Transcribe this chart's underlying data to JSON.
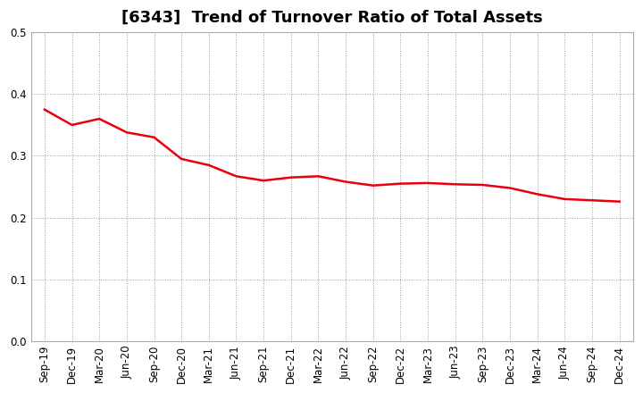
{
  "title": "[6343]  Trend of Turnover Ratio of Total Assets",
  "x_labels": [
    "Sep-19",
    "Dec-19",
    "Mar-20",
    "Jun-20",
    "Sep-20",
    "Dec-20",
    "Mar-21",
    "Jun-21",
    "Sep-21",
    "Dec-21",
    "Mar-22",
    "Jun-22",
    "Sep-22",
    "Dec-22",
    "Mar-23",
    "Jun-23",
    "Sep-23",
    "Dec-23",
    "Mar-24",
    "Jun-24",
    "Sep-24",
    "Dec-24"
  ],
  "values": [
    0.375,
    0.35,
    0.36,
    0.338,
    0.33,
    0.295,
    0.285,
    0.267,
    0.26,
    0.265,
    0.267,
    0.258,
    0.252,
    0.255,
    0.256,
    0.254,
    0.253,
    0.248,
    0.238,
    0.23,
    0.228,
    0.226
  ],
  "line_color": "#e8000d",
  "line_width": 1.8,
  "ylim": [
    0.0,
    0.5
  ],
  "yticks": [
    0.0,
    0.1,
    0.2,
    0.3,
    0.4,
    0.5
  ],
  "background_color": "#ffffff",
  "grid_color": "#999999",
  "title_fontsize": 13,
  "tick_fontsize": 8.5
}
